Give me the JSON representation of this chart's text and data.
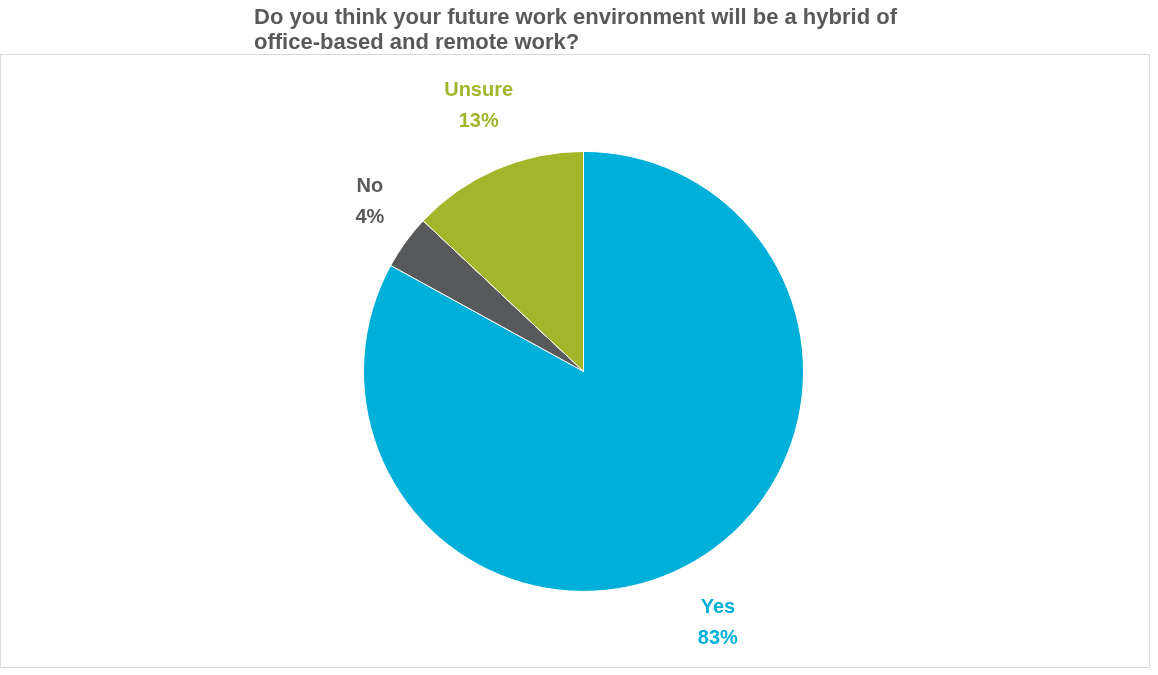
{
  "chart_data": {
    "type": "pie",
    "title": "Do you think your future work environment will be a hybrid of office-based and remote work?",
    "categories": [
      "Yes",
      "No",
      "Unsure"
    ],
    "values": [
      83,
      4,
      13
    ],
    "colors": [
      "#00b0d8",
      "#58595b",
      "#a2b52b"
    ],
    "value_labels": [
      "83%",
      "4%",
      "13%"
    ]
  }
}
